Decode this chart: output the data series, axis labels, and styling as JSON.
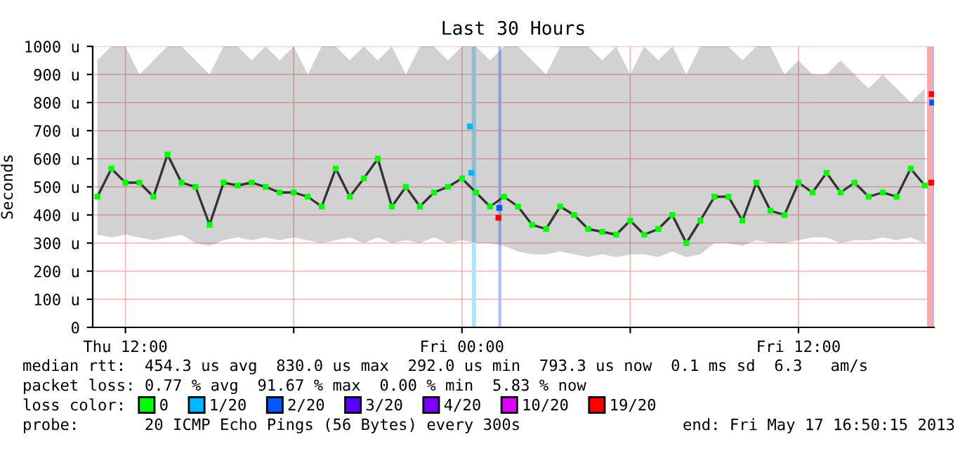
{
  "chart_data": {
    "type": "line",
    "title": "Last 30 Hours",
    "ylabel": "Seconds",
    "xlim": [
      "2013-05-16T10:50",
      "2013-05-17T16:50"
    ],
    "xticks": [
      {
        "value": "2013-05-16T12:00",
        "label": "Thu 12:00"
      },
      {
        "value": "2013-05-16T18:00",
        "label": null
      },
      {
        "value": "2013-05-17T00:00",
        "label": "Fri 00:00"
      },
      {
        "value": "2013-05-17T06:00",
        "label": null
      },
      {
        "value": "2013-05-17T12:00",
        "label": "Fri 12:00"
      }
    ],
    "ylim": [
      0,
      1000
    ],
    "yticks": [
      0,
      {
        "value": 100,
        "label": "100 u"
      },
      {
        "value": 200,
        "label": "200 u"
      },
      {
        "value": 300,
        "label": "300 u"
      },
      {
        "value": 400,
        "label": "400 u"
      },
      {
        "value": 500,
        "label": "500 u"
      },
      {
        "value": 600,
        "label": "600 u"
      },
      {
        "value": 700,
        "label": "700 u"
      },
      {
        "value": 800,
        "label": "800 u"
      },
      {
        "value": 900,
        "label": "900 u"
      },
      {
        "value": 1000,
        "label": "1000 u"
      }
    ],
    "grid": true,
    "legend": "bottom",
    "legend_title": "loss color:",
    "series": [
      {
        "color": "#333333",
        "x": [
          "2013-05-16T11:00",
          "2013-05-16T11:30",
          "2013-05-16T12:00",
          "2013-05-16T12:30",
          "2013-05-16T13:00",
          "2013-05-16T13:30",
          "2013-05-16T14:00",
          "2013-05-16T14:30",
          "2013-05-16T15:00",
          "2013-05-16T15:30",
          "2013-05-16T16:00",
          "2013-05-16T16:30",
          "2013-05-16T17:00",
          "2013-05-16T17:30",
          "2013-05-16T18:00",
          "2013-05-16T18:30",
          "2013-05-16T19:00",
          "2013-05-16T19:30",
          "2013-05-16T20:00",
          "2013-05-16T20:30",
          "2013-05-16T21:00",
          "2013-05-16T21:30",
          "2013-05-16T22:00",
          "2013-05-16T22:30",
          "2013-05-16T23:00",
          "2013-05-16T23:30",
          "2013-05-17T00:00",
          "2013-05-17T00:30",
          "2013-05-17T01:00",
          "2013-05-17T01:30",
          "2013-05-17T02:00",
          "2013-05-17T02:30",
          "2013-05-17T03:00",
          "2013-05-17T03:30",
          "2013-05-17T04:00",
          "2013-05-17T04:30",
          "2013-05-17T05:00",
          "2013-05-17T05:30",
          "2013-05-17T06:00",
          "2013-05-17T06:30",
          "2013-05-17T07:00",
          "2013-05-17T07:30",
          "2013-05-17T08:00",
          "2013-05-17T08:30",
          "2013-05-17T09:00",
          "2013-05-17T09:30",
          "2013-05-17T10:00",
          "2013-05-17T10:30",
          "2013-05-17T11:00",
          "2013-05-17T11:30",
          "2013-05-17T12:00",
          "2013-05-17T12:30",
          "2013-05-17T13:00",
          "2013-05-17T13:30",
          "2013-05-17T14:00",
          "2013-05-17T14:30",
          "2013-05-17T15:00",
          "2013-05-17T15:30",
          "2013-05-17T16:00",
          "2013-05-17T16:30"
        ],
        "values": [
          465,
          565,
          515,
          515,
          465,
          615,
          515,
          500,
          365,
          515,
          505,
          515,
          500,
          480,
          480,
          465,
          430,
          565,
          465,
          530,
          600,
          430,
          500,
          430,
          480,
          500,
          530,
          480,
          430,
          465,
          430,
          365,
          350,
          430,
          400,
          350,
          340,
          330,
          380,
          330,
          350,
          400,
          300,
          380,
          465,
          465,
          380,
          515,
          415,
          400,
          515,
          480,
          550,
          480,
          515,
          465,
          480,
          465,
          565,
          505
        ],
        "lower": [
          330,
          320,
          330,
          320,
          310,
          320,
          330,
          300,
          290,
          310,
          320,
          310,
          320,
          310,
          320,
          310,
          300,
          310,
          320,
          300,
          320,
          300,
          310,
          300,
          320,
          300,
          310,
          300,
          300,
          290,
          270,
          260,
          260,
          270,
          260,
          250,
          260,
          250,
          260,
          260,
          250,
          270,
          250,
          260,
          300,
          300,
          290,
          310,
          300,
          300,
          310,
          320,
          320,
          300,
          310,
          310,
          320,
          310,
          320,
          300
        ],
        "upper": [
          950,
          1000,
          1000,
          900,
          950,
          1000,
          1000,
          950,
          900,
          1000,
          1000,
          950,
          1000,
          950,
          1000,
          900,
          1000,
          1000,
          950,
          1000,
          950,
          1000,
          900,
          1000,
          1000,
          950,
          1000,
          1000,
          950,
          1000,
          1000,
          950,
          900,
          1000,
          1000,
          1000,
          950,
          1000,
          900,
          1000,
          950,
          1000,
          900,
          1000,
          1000,
          1000,
          950,
          1000,
          1000,
          900,
          950,
          900,
          900,
          950,
          900,
          850,
          900,
          850,
          800,
          850
        ]
      },
      {
        "name": "0",
        "type": "scatter",
        "marker": "square",
        "color": "#00ff00",
        "x": [
          "2013-05-16T11:00",
          "2013-05-16T11:30",
          "2013-05-16T12:00",
          "2013-05-16T12:30",
          "2013-05-16T13:00",
          "2013-05-16T13:30",
          "2013-05-16T14:00",
          "2013-05-16T14:30",
          "2013-05-16T15:00",
          "2013-05-16T15:30",
          "2013-05-16T16:00",
          "2013-05-16T16:30",
          "2013-05-16T17:00",
          "2013-05-16T17:30",
          "2013-05-16T18:00",
          "2013-05-16T18:30",
          "2013-05-16T19:00",
          "2013-05-16T19:30",
          "2013-05-16T20:00",
          "2013-05-16T20:30",
          "2013-05-16T21:00",
          "2013-05-16T21:30",
          "2013-05-16T22:00",
          "2013-05-16T22:30",
          "2013-05-16T23:00",
          "2013-05-16T23:30",
          "2013-05-17T00:00",
          "2013-05-17T00:30",
          "2013-05-17T01:00",
          "2013-05-17T01:30",
          "2013-05-17T02:00",
          "2013-05-17T02:30",
          "2013-05-17T03:00",
          "2013-05-17T03:30",
          "2013-05-17T04:00",
          "2013-05-17T04:30",
          "2013-05-17T05:00",
          "2013-05-17T05:30",
          "2013-05-17T06:00",
          "2013-05-17T06:30",
          "2013-05-17T07:00",
          "2013-05-17T07:30",
          "2013-05-17T08:00",
          "2013-05-17T08:30",
          "2013-05-17T09:00",
          "2013-05-17T09:30",
          "2013-05-17T10:00",
          "2013-05-17T10:30",
          "2013-05-17T11:00",
          "2013-05-17T11:30",
          "2013-05-17T12:00",
          "2013-05-17T12:30",
          "2013-05-17T13:00",
          "2013-05-17T13:30",
          "2013-05-17T14:00",
          "2013-05-17T14:30",
          "2013-05-17T15:00",
          "2013-05-17T15:30",
          "2013-05-17T16:00",
          "2013-05-17T16:30"
        ],
        "values": [
          465,
          565,
          515,
          515,
          465,
          615,
          515,
          500,
          365,
          515,
          505,
          515,
          500,
          480,
          480,
          465,
          430,
          565,
          465,
          530,
          600,
          430,
          500,
          430,
          480,
          500,
          530,
          480,
          430,
          465,
          430,
          365,
          350,
          430,
          400,
          350,
          340,
          330,
          380,
          330,
          350,
          400,
          300,
          380,
          465,
          465,
          380,
          515,
          415,
          400,
          515,
          480,
          550,
          480,
          515,
          465,
          480,
          465,
          565,
          505
        ]
      },
      {
        "name": "1/20",
        "type": "scatter",
        "marker": "square",
        "color": "#00b8ff",
        "x": [
          "2013-05-17T00:17",
          "2013-05-17T00:20"
        ],
        "values": [
          715,
          550
        ]
      },
      {
        "name": "2/20",
        "type": "scatter",
        "marker": "square",
        "color": "#0059ff",
        "x": [
          "2013-05-17T01:20",
          "2013-05-17T16:46"
        ],
        "values": [
          425,
          800
        ]
      },
      {
        "name": "3/20",
        "type": "scatter",
        "color": "#5e00ff"
      },
      {
        "name": "4/20",
        "type": "scatter",
        "color": "#7e00ff"
      },
      {
        "name": "10/20",
        "type": "scatter",
        "color": "#dd00ff"
      },
      {
        "name": "19/20",
        "type": "scatter",
        "marker": "square",
        "color": "#ff0000",
        "x": [
          "2013-05-17T01:18",
          "2013-05-17T16:44",
          "2013-05-17T16:45"
        ],
        "values": [
          390,
          515,
          830
        ]
      }
    ],
    "bands": [
      {
        "axis": "x",
        "from": "2013-05-17T00:21",
        "to": "2013-05-17T00:30",
        "color": "#aae6ff"
      },
      {
        "axis": "x",
        "from": "2013-05-17T01:18",
        "to": "2013-05-17T01:24",
        "color": "#aabbff"
      },
      {
        "axis": "x",
        "from": "2013-05-17T16:35",
        "to": "2013-05-17T16:47",
        "color": "#ffaaaa"
      },
      {
        "axis": "x",
        "from": "2013-05-17T16:47",
        "to": "2013-05-17T16:50",
        "color": "#aabbff"
      }
    ],
    "annotations": [
      "median rtt:  454.3 us avg  830.0 us max  292.0 us min  793.3 us now  0.1 ms sd  6.3   am/s",
      "packet loss: 0.77 % avg  91.67 % max  0.00 % min  5.83 % now",
      "probe:       20 ICMP Echo Pings (56 Bytes) every 300s",
      "end: Fri May 17 16:50:15 2013"
    ]
  }
}
